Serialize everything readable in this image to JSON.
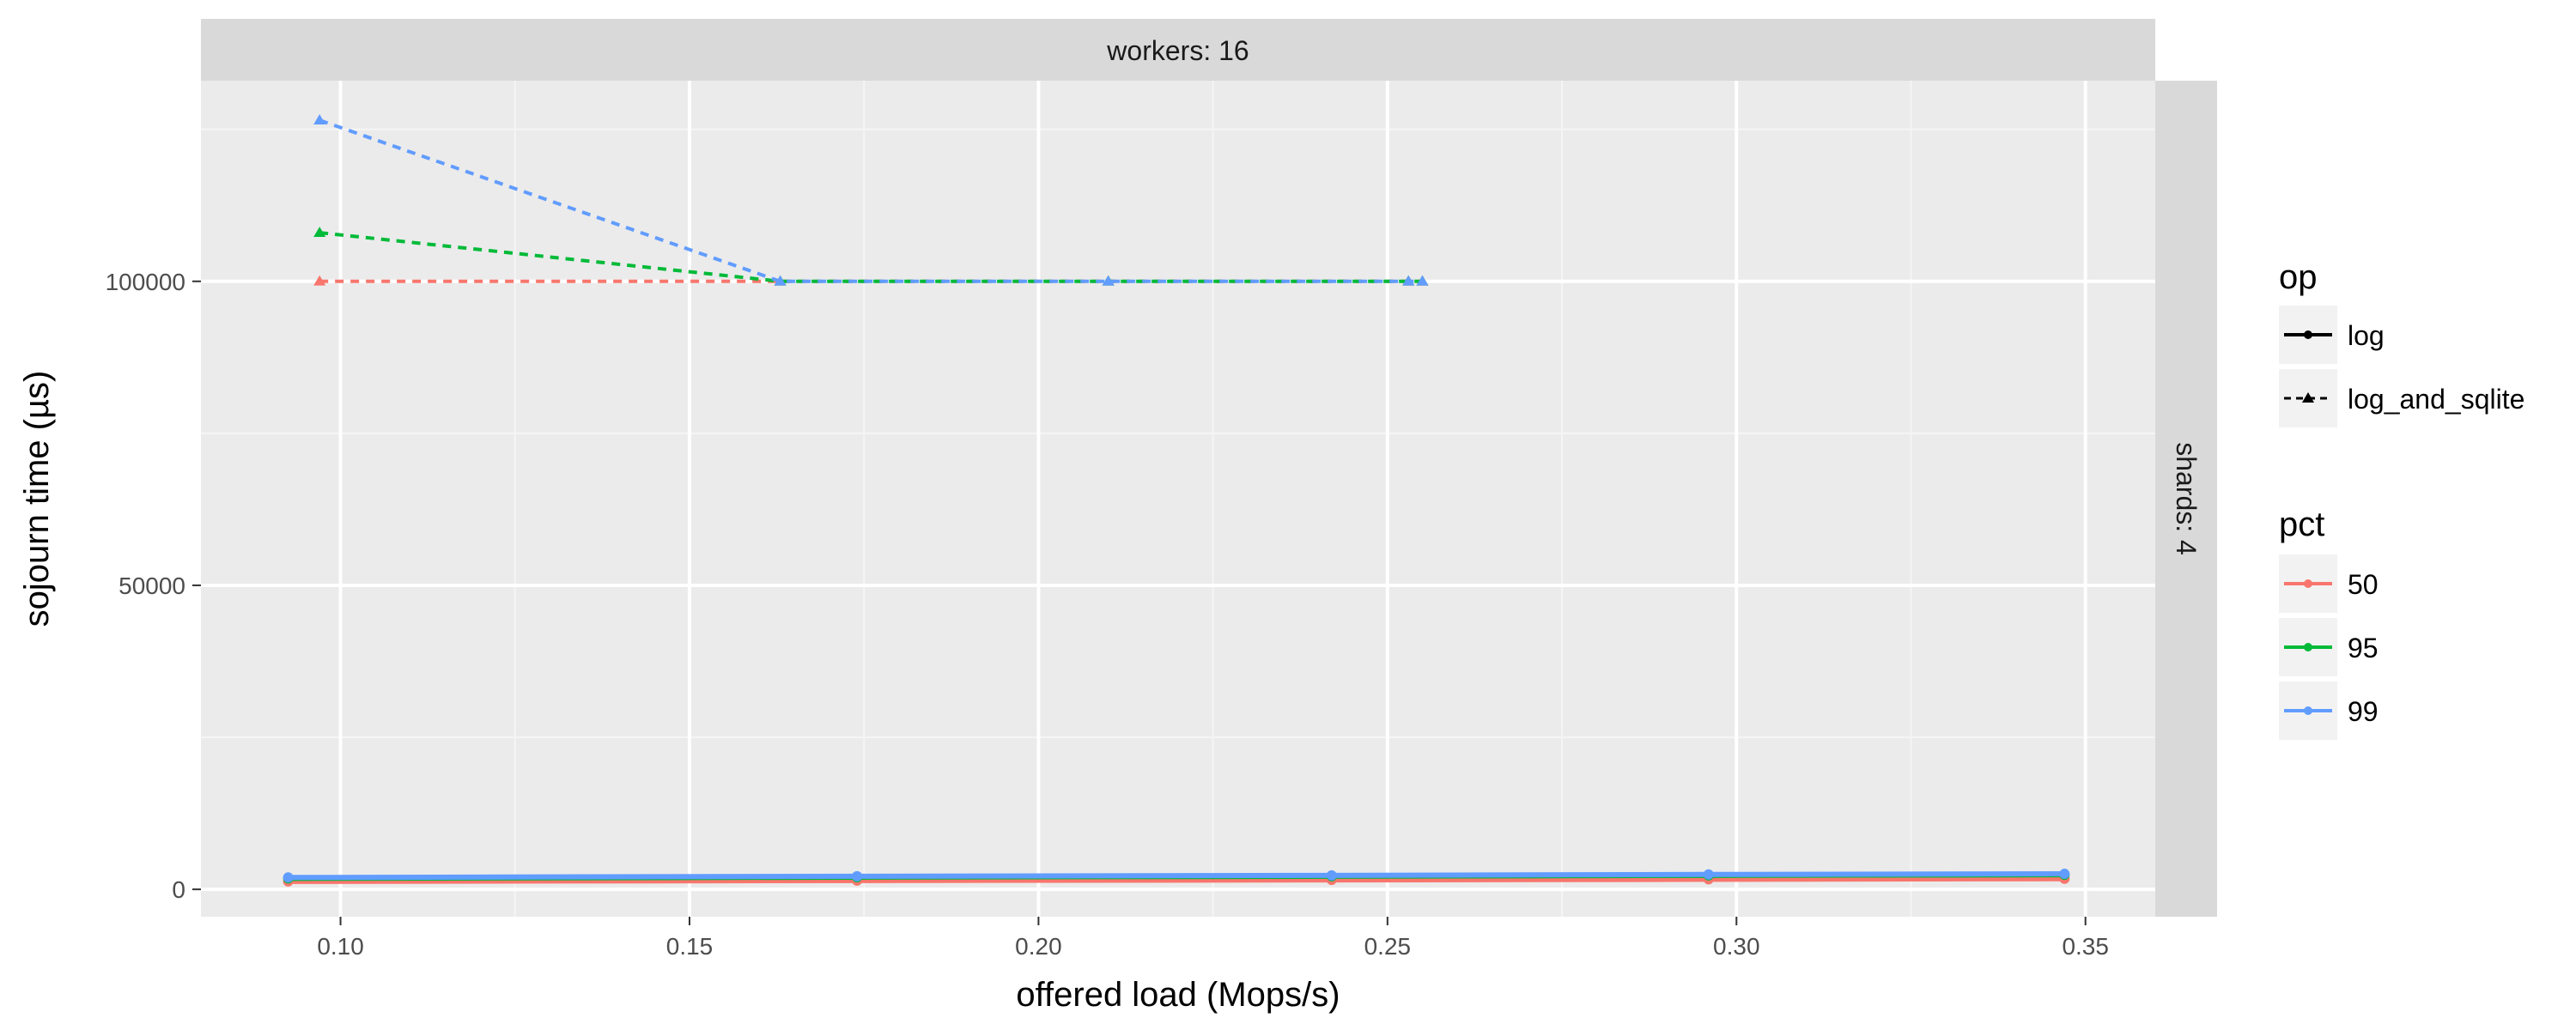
{
  "chart_data": {
    "type": "line",
    "facet": {
      "column_label": "workers: 16",
      "row_label": "shards: 4"
    },
    "xlabel": "offered load (Mops/s)",
    "ylabel": "sojourn time (µs)",
    "xlim": [
      0.08,
      0.36
    ],
    "ylim": [
      -4500,
      133000
    ],
    "x_ticks": [
      0.1,
      0.15,
      0.2,
      0.25,
      0.3,
      0.35
    ],
    "x_tick_labels": [
      "0.10",
      "0.15",
      "0.20",
      "0.25",
      "0.30",
      "0.35"
    ],
    "y_ticks": [
      0,
      50000,
      100000
    ],
    "y_tick_labels": [
      "0",
      "50000",
      "100000"
    ],
    "grid": true,
    "legend": {
      "placement": "right",
      "op": {
        "title": "op",
        "entries": [
          "log",
          "log_and_sqlite"
        ]
      },
      "pct": {
        "title": "pct",
        "entries": [
          "50",
          "95",
          "99"
        ]
      }
    },
    "colors": {
      "50": "#F8766D",
      "95": "#00BA38",
      "99": "#619CFF"
    },
    "series": [
      {
        "op": "log",
        "pct": "50",
        "x": [
          0.0925,
          0.174,
          0.242,
          0.296,
          0.347
        ],
        "y": [
          1300,
          1450,
          1550,
          1650,
          1750
        ]
      },
      {
        "op": "log",
        "pct": "95",
        "x": [
          0.0925,
          0.174,
          0.242,
          0.296,
          0.347
        ],
        "y": [
          1800,
          2000,
          2150,
          2300,
          2400
        ]
      },
      {
        "op": "log",
        "pct": "99",
        "x": [
          0.0925,
          0.174,
          0.242,
          0.296,
          0.347
        ],
        "y": [
          1950,
          2150,
          2300,
          2450,
          2550
        ]
      },
      {
        "op": "log_and_sqlite",
        "pct": "50",
        "x": [
          0.097,
          0.163,
          0.21,
          0.253,
          0.255
        ],
        "y": [
          100000,
          100000,
          100000,
          100000,
          100000
        ]
      },
      {
        "op": "log_and_sqlite",
        "pct": "95",
        "x": [
          0.097,
          0.163,
          0.21,
          0.253,
          0.255
        ],
        "y": [
          108000,
          100000,
          100000,
          100000,
          100000
        ]
      },
      {
        "op": "log_and_sqlite",
        "pct": "99",
        "x": [
          0.097,
          0.163,
          0.21,
          0.253,
          0.255
        ],
        "y": [
          126500,
          100000,
          100000,
          100000,
          100000
        ]
      }
    ]
  }
}
